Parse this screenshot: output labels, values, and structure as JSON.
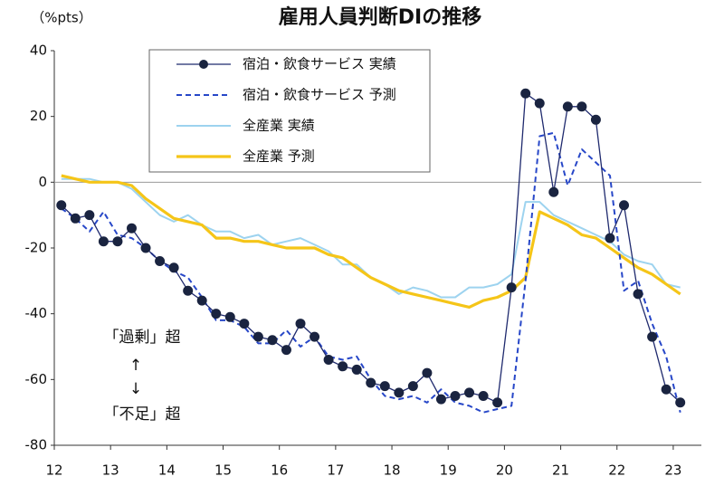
{
  "chart_data": {
    "type": "line",
    "title": "雇用人員判断DIの推移",
    "y_unit_label": "（%pts）",
    "annotations": [
      "「過剰」超",
      "↑",
      "↓",
      "「不足」超"
    ],
    "x": [
      12.125,
      12.375,
      12.625,
      12.875,
      13.125,
      13.375,
      13.625,
      13.875,
      14.125,
      14.375,
      14.625,
      14.875,
      15.125,
      15.375,
      15.625,
      15.875,
      16.125,
      16.375,
      16.625,
      16.875,
      17.125,
      17.375,
      17.625,
      17.875,
      18.125,
      18.375,
      18.625,
      18.875,
      19.125,
      19.375,
      19.625,
      19.875,
      20.125,
      20.375,
      20.625,
      20.875,
      21.125,
      21.375,
      21.625,
      21.875,
      22.125,
      22.375,
      22.625,
      22.875,
      23.125
    ],
    "xlim": [
      12,
      23.5
    ],
    "xticks": [
      12,
      13,
      14,
      15,
      16,
      17,
      18,
      19,
      20,
      21,
      22,
      23
    ],
    "ylim": [
      -80,
      40
    ],
    "yticks": [
      -80,
      -60,
      -40,
      -20,
      0,
      20,
      40
    ],
    "legend": "top-left",
    "series": [
      {
        "name": "宿泊・飲食サービス 実績",
        "color": "#1f2a6e",
        "style": "solid",
        "marker": true,
        "width": 1.3,
        "values": [
          -7,
          -11,
          -10,
          -18,
          -18,
          -14,
          -20,
          -24,
          -26,
          -33,
          -36,
          -40,
          -41,
          -43,
          -47,
          -48,
          -51,
          -43,
          -47,
          -54,
          -56,
          -57,
          -61,
          -62,
          -64,
          -62,
          -58,
          -66,
          -65,
          -64,
          -65,
          -67,
          -32,
          27,
          24,
          -3,
          23,
          23,
          19,
          -17,
          -7,
          -34,
          -47,
          -63,
          -67
        ]
      },
      {
        "name": "宿泊・飲食サービス 予測",
        "color": "#2747c8",
        "style": "dashed",
        "marker": false,
        "width": 2,
        "values": [
          -8,
          -11,
          -15,
          -9,
          -16,
          -17,
          -20,
          -24,
          -27,
          -29,
          -35,
          -42,
          -42,
          -44,
          -49,
          -49,
          -45,
          -50,
          -47,
          -53,
          -54,
          -53,
          -60,
          -65,
          -66,
          -65,
          -67,
          -63,
          -67,
          -68,
          -70,
          -69,
          -68,
          -30,
          14,
          15,
          -1,
          10,
          6,
          2,
          -33,
          -30,
          -43,
          -53,
          -70
        ]
      },
      {
        "name": "全産業 実績",
        "color": "#9dd3ef",
        "style": "solid",
        "marker": false,
        "width": 2,
        "values": [
          1,
          1,
          1,
          0,
          0,
          -2,
          -6,
          -10,
          -12,
          -10,
          -13,
          -15,
          -15,
          -17,
          -16,
          -19,
          -18,
          -17,
          -19,
          -21,
          -25,
          -25,
          -29,
          -31,
          -34,
          -32,
          -33,
          -35,
          -35,
          -32,
          -32,
          -31,
          -28,
          -6,
          -6,
          -10,
          -12,
          -14,
          -16,
          -18,
          -22,
          -24,
          -25,
          -31,
          -32
        ]
      },
      {
        "name": "全産業 予測",
        "color": "#f5c518",
        "style": "solid",
        "marker": false,
        "width": 3.2,
        "values": [
          2,
          1,
          0,
          0,
          0,
          -1,
          -5,
          -8,
          -11,
          -12,
          -13,
          -17,
          -17,
          -18,
          -18,
          -19,
          -20,
          -20,
          -20,
          -22,
          -23,
          -26,
          -29,
          -31,
          -33,
          -34,
          -35,
          -36,
          -37,
          -38,
          -36,
          -35,
          -33,
          -29,
          -9,
          -11,
          -13,
          -16,
          -17,
          -20,
          -23,
          -26,
          -28,
          -31,
          -34
        ]
      }
    ]
  }
}
